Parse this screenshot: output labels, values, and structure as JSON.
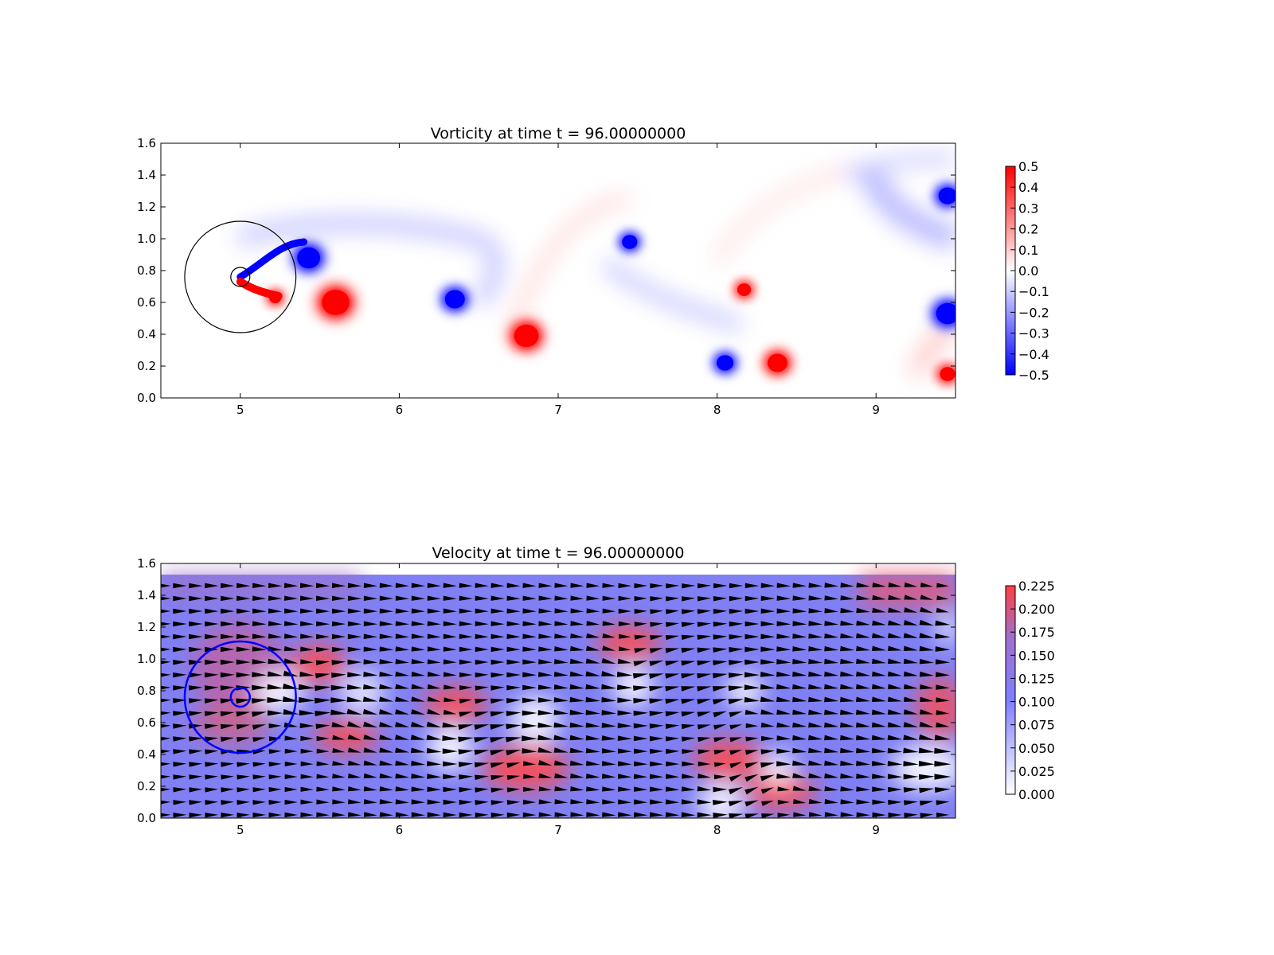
{
  "chart_data": [
    {
      "type": "heatmap",
      "title": "Vorticity at time t =    96.00000000",
      "xlim": [
        4.5,
        9.5
      ],
      "ylim": [
        0.0,
        1.6
      ],
      "x_ticks": [
        "5",
        "6",
        "7",
        "8",
        "9"
      ],
      "y_ticks": [
        "0.0",
        "0.2",
        "0.4",
        "0.6",
        "0.8",
        "1.0",
        "1.2",
        "1.4",
        "1.6"
      ],
      "colorbar": {
        "min": -0.5,
        "max": 0.5,
        "ticks": [
          "0.5",
          "0.4",
          "0.3",
          "0.2",
          "0.1",
          "0.0",
          "−0.1",
          "−0.2",
          "−0.3",
          "−0.4",
          "−0.5"
        ],
        "colormap": [
          "#0000ff",
          "#ffffff",
          "#ff0000"
        ]
      },
      "cylinder": {
        "cx": 5.0,
        "cy": 0.76,
        "r": 0.06,
        "outer_r": 0.35,
        "color": "#000000"
      },
      "vortices": [
        {
          "x": 5.43,
          "y": 0.88,
          "sign": -1,
          "r": 0.15
        },
        {
          "x": 5.6,
          "y": 0.6,
          "sign": 1,
          "r": 0.18
        },
        {
          "x": 5.22,
          "y": 0.63,
          "sign": 1,
          "r": 0.08
        },
        {
          "x": 6.35,
          "y": 0.62,
          "sign": -1,
          "r": 0.13
        },
        {
          "x": 6.8,
          "y": 0.39,
          "sign": 1,
          "r": 0.16
        },
        {
          "x": 7.45,
          "y": 0.98,
          "sign": -1,
          "r": 0.1
        },
        {
          "x": 8.05,
          "y": 0.22,
          "sign": -1,
          "r": 0.11
        },
        {
          "x": 8.17,
          "y": 0.68,
          "sign": 1,
          "r": 0.09
        },
        {
          "x": 8.38,
          "y": 0.22,
          "sign": 1,
          "r": 0.13
        },
        {
          "x": 9.45,
          "y": 1.27,
          "sign": -1,
          "r": 0.12
        },
        {
          "x": 9.45,
          "y": 0.53,
          "sign": -1,
          "r": 0.15
        },
        {
          "x": 9.45,
          "y": 0.15,
          "sign": 1,
          "r": 0.1
        }
      ]
    },
    {
      "type": "heatmap",
      "title": "Velocity at time t =    96.00000000",
      "xlim": [
        4.5,
        9.5
      ],
      "ylim": [
        0.0,
        1.6
      ],
      "x_ticks": [
        "5",
        "6",
        "7",
        "8",
        "9"
      ],
      "y_ticks": [
        "0.0",
        "0.2",
        "0.4",
        "0.6",
        "0.8",
        "1.0",
        "1.2",
        "1.4",
        "1.6"
      ],
      "colorbar": {
        "min": 0.0,
        "max": 0.225,
        "ticks": [
          "0.225",
          "0.200",
          "0.175",
          "0.150",
          "0.125",
          "0.100",
          "0.075",
          "0.050",
          "0.025",
          "0.000"
        ],
        "colormap": [
          "#ffffff",
          "#7f7fff",
          "#ff3f3f"
        ]
      },
      "overlay": "quiver arrows (black)",
      "cylinder": {
        "cx": 5.0,
        "cy": 0.76,
        "r": 0.06,
        "outer_r": 0.35,
        "color": "#0000ff"
      }
    }
  ]
}
